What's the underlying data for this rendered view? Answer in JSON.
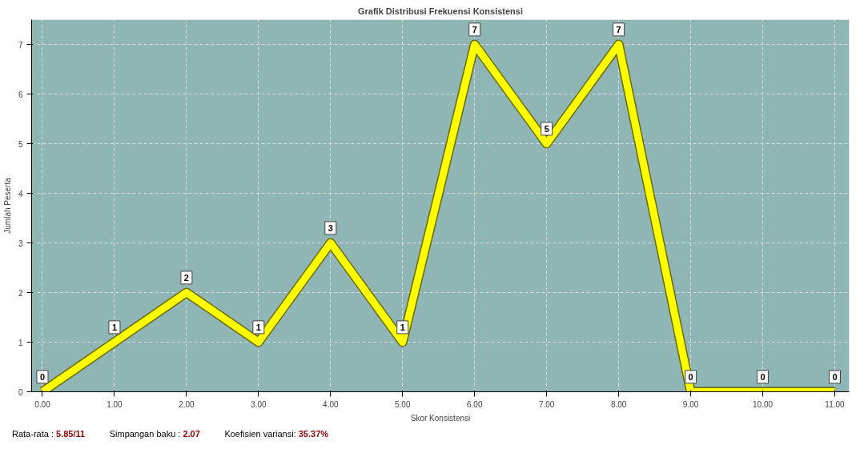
{
  "chart_data": {
    "type": "line",
    "title": "Grafik Distribusi Frekuensi Konsistensi",
    "xlabel": "Skor Konsistensi",
    "ylabel": "Jumlah Peserta",
    "x": [
      0,
      1,
      2,
      3,
      4,
      5,
      6,
      7,
      8,
      9,
      10,
      11
    ],
    "series": [
      {
        "color": "#ffff00",
        "values": [
          0,
          1,
          2,
          1,
          3,
          1,
          7,
          5,
          7,
          0,
          0,
          0
        ]
      }
    ],
    "xlim": [
      -0.15,
      11.2
    ],
    "ylim": [
      0,
      7.5
    ],
    "xticks": [
      {
        "value": 0,
        "label": "0.00"
      },
      {
        "value": 1,
        "label": "1.00"
      },
      {
        "value": 2,
        "label": "2.00"
      },
      {
        "value": 3,
        "label": "3.00"
      },
      {
        "value": 4,
        "label": "4.00"
      },
      {
        "value": 5,
        "label": "5.00"
      },
      {
        "value": 6,
        "label": "6.00"
      },
      {
        "value": 7,
        "label": "7.00"
      },
      {
        "value": 8,
        "label": "8.00"
      },
      {
        "value": 9,
        "label": "9.00"
      },
      {
        "value": 10,
        "label": "10.00"
      },
      {
        "value": 11,
        "label": "11.00"
      }
    ],
    "yticks": [
      0,
      1,
      2,
      3,
      4,
      5,
      6,
      7
    ],
    "grid": true,
    "data_labels": true,
    "line_style": "solid",
    "annotations": [
      "Rata-rata : 5.85/11",
      "Simpangan baku : 2.07",
      "Koefisien variansi: 35.37%"
    ]
  }
}
